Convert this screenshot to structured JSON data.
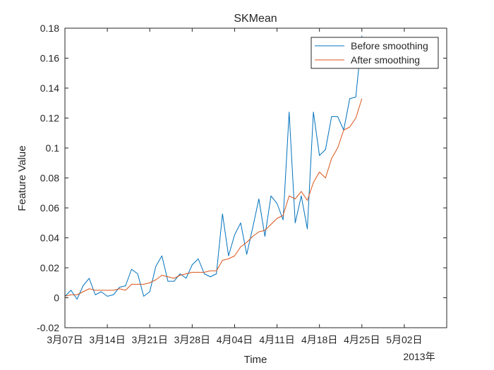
{
  "chart_data": {
    "type": "line",
    "title": "SKMean",
    "xlabel": "Time",
    "ylabel": "Feature Value",
    "x_start": "2013-03-07",
    "x_step_days": 1,
    "xlim": [
      "2013-03-07",
      "2013-05-09"
    ],
    "x_tick_labels": [
      "3月07日",
      "3月14日",
      "3月21日",
      "3月28日",
      "4月04日",
      "4月11日",
      "4月18日",
      "4月25日",
      "5月02日"
    ],
    "x_secondary_label": "2013年",
    "ylim": [
      -0.02,
      0.18
    ],
    "y_ticks": [
      -0.02,
      0,
      0.02,
      0.04,
      0.06,
      0.08,
      0.1,
      0.12,
      0.14,
      0.16,
      0.18
    ],
    "y_tick_labels": [
      "-0.02",
      "0",
      "0.02",
      "0.04",
      "0.06",
      "0.08",
      "0.1",
      "0.12",
      "0.14",
      "0.16",
      "0.18"
    ],
    "grid": false,
    "legend_position": "top-right",
    "series": [
      {
        "name": "Before smoothing",
        "color": "#0072BD",
        "values": [
          0.001,
          0.005,
          -0.001,
          0.008,
          0.013,
          0.002,
          0.004,
          0.001,
          0.002,
          0.007,
          0.008,
          0.019,
          0.016,
          0.001,
          0.004,
          0.021,
          0.028,
          0.011,
          0.011,
          0.016,
          0.013,
          0.022,
          0.026,
          0.016,
          0.014,
          0.016,
          0.056,
          0.028,
          0.042,
          0.05,
          0.029,
          0.047,
          0.066,
          0.041,
          0.068,
          0.063,
          0.052,
          0.124,
          0.05,
          0.068,
          0.046,
          0.124,
          0.095,
          0.099,
          0.121,
          0.121,
          0.112,
          0.133,
          0.134,
          0.175
        ]
      },
      {
        "name": "After smoothing",
        "color": "#D95319",
        "values": [
          0.001,
          0.002,
          0.002,
          0.004,
          0.006,
          0.005,
          0.005,
          0.005,
          0.005,
          0.006,
          0.005,
          0.009,
          0.009,
          0.009,
          0.01,
          0.012,
          0.015,
          0.014,
          0.013,
          0.015,
          0.016,
          0.017,
          0.017,
          0.017,
          0.018,
          0.018,
          0.025,
          0.026,
          0.028,
          0.034,
          0.037,
          0.041,
          0.044,
          0.045,
          0.049,
          0.053,
          0.055,
          0.068,
          0.066,
          0.071,
          0.065,
          0.077,
          0.084,
          0.08,
          0.093,
          0.1,
          0.112,
          0.114,
          0.12,
          0.133
        ]
      }
    ]
  }
}
